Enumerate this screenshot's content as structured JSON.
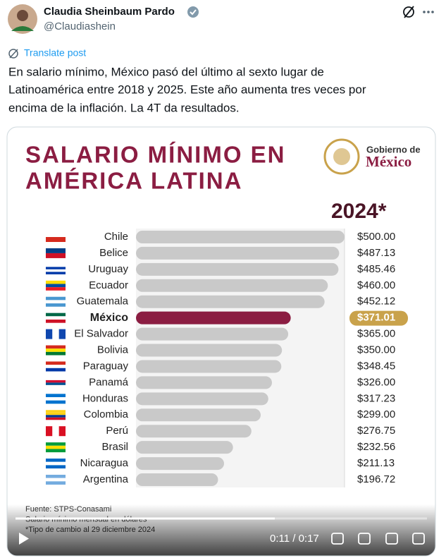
{
  "post": {
    "author": "Claudia Sheinbaum Pardo",
    "handle": "@Claudiashein",
    "translate": "Translate post",
    "text": [
      "En salario mínimo, México pasó del último al sexto lugar de",
      "Latinoamérica entre 2018 y 2025. Este año aumenta tres veces por",
      "encima de la inflación. La 4T da resultados."
    ]
  },
  "video": {
    "time": "0:11 / 0:17"
  },
  "chart_data": {
    "type": "bar",
    "orientation": "horizontal",
    "title": [
      "SALARIO MÍNIMO EN",
      "AMÉRICA LATINA"
    ],
    "subtitle": "2024*",
    "logo": [
      "Gobierno de",
      "México"
    ],
    "categories": [
      "Chile",
      "Belice",
      "Uruguay",
      "Ecuador",
      "Guatemala",
      "México",
      "El Salvador",
      "Bolivia",
      "Paraguay",
      "Panamá",
      "Honduras",
      "Colombia",
      "Perú",
      "Brasil",
      "Nicaragua",
      "Argentina"
    ],
    "values": [
      500.0,
      487.13,
      485.46,
      460.0,
      452.12,
      371.01,
      365.0,
      350.0,
      348.45,
      326.0,
      317.23,
      299.0,
      276.75,
      232.56,
      211.13,
      196.72
    ],
    "value_labels": [
      "$500.00",
      "$487.13",
      "$485.46",
      "$460.00",
      "$452.12",
      "$371.01",
      "$365.00",
      "$350.00",
      "$348.45",
      "$326.00",
      "$317.23",
      "$299.00",
      "$276.75",
      "$232.56",
      "$211.13",
      "$196.72"
    ],
    "xlim": [
      0,
      500
    ],
    "color": "#c9c9c9",
    "highlight": "México",
    "highlight_color": "#8b1d42",
    "label_highlight_color": "#c9a24b",
    "notes": [
      "Fuente: STPS-Conasami",
      "Salario mínimo mensual en dólares",
      "*Tipo de cambio al 29 diciembre 2024"
    ]
  }
}
